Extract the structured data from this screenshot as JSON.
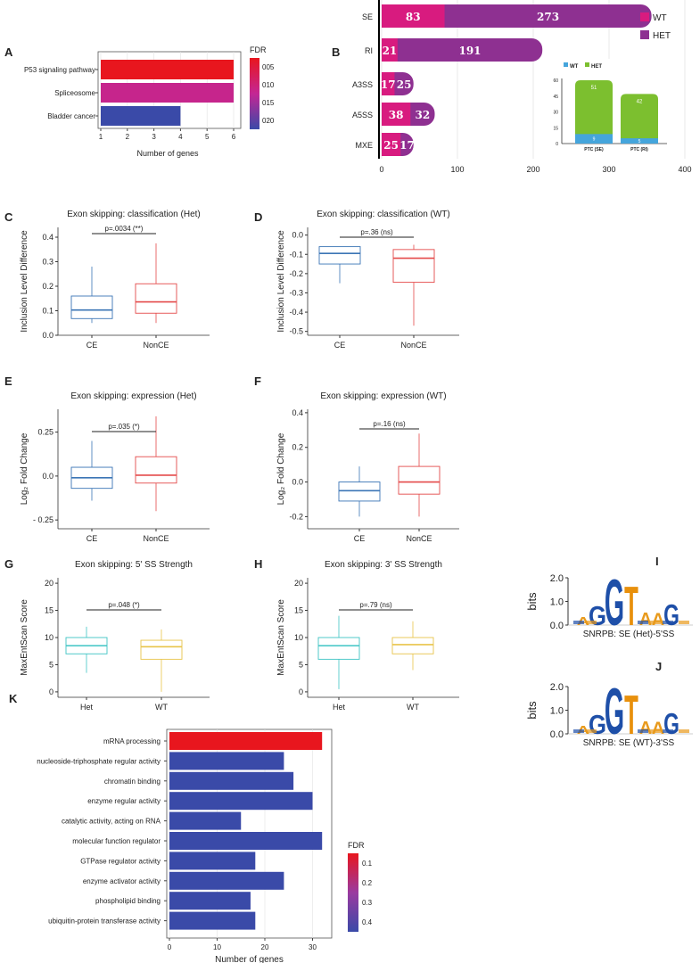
{
  "panel_labels": {
    "a": "A",
    "b": "B",
    "c": "C",
    "d": "D",
    "e": "E",
    "f": "F",
    "g": "G",
    "h": "H",
    "i": "I",
    "j": "J",
    "k": "K"
  },
  "colors": {
    "wt": "#d81b7f",
    "het": "#8e3091",
    "grid": "#e3e3e3",
    "blue_box": "#3b75b5",
    "red_box": "#e44a4a",
    "teal_box": "#3ec4c4",
    "yellow_box": "#e8c44a",
    "ptc_wt": "#45a5dc",
    "ptc_het": "#7cbf2f",
    "logo_g": "#1e4fa8",
    "logo_t": "#e8900c",
    "logo_a": "#e89a1c"
  },
  "chart_data": [
    {
      "id": "A",
      "type": "bar",
      "orientation": "horizontal",
      "categories": [
        "P53 signaling pathway",
        "Spliceosome",
        "Bladder cancer"
      ],
      "values": [
        6,
        6,
        4
      ],
      "fdr": [
        0.005,
        0.012,
        0.02
      ],
      "xlabel": "Number of genes",
      "xlim": [
        1,
        6
      ],
      "xticks": [
        1,
        2,
        3,
        4,
        5,
        6
      ],
      "legend_title": "FDR",
      "legend_ticks": [
        "005",
        "010",
        "015",
        "020"
      ]
    },
    {
      "id": "B",
      "type": "bar",
      "orientation": "horizontal",
      "stacked": true,
      "categories": [
        "SE",
        "RI",
        "A3SS",
        "A5SS",
        "MXE"
      ],
      "series": [
        {
          "name": "WT",
          "values": [
            83,
            21,
            17,
            38,
            25
          ]
        },
        {
          "name": "HET",
          "values": [
            273,
            191,
            25,
            32,
            17
          ]
        }
      ],
      "xlim": [
        0,
        400
      ],
      "xticks": [
        0,
        100,
        200,
        300,
        400
      ],
      "legend": [
        "WT",
        "HET"
      ],
      "inset": {
        "type": "bar",
        "stacked": true,
        "categories": [
          "PTC (SE)",
          "PTC (RI)"
        ],
        "series": [
          {
            "name": "WT",
            "values": [
              9,
              5
            ]
          },
          {
            "name": "HET",
            "values": [
              51,
              42
            ]
          }
        ],
        "ylim": [
          0,
          60
        ],
        "yticks": [
          0,
          15,
          30,
          45,
          60
        ],
        "legend": [
          "WT",
          "HET"
        ]
      }
    },
    {
      "id": "C",
      "type": "box",
      "title": "Exon skipping: classification (Het)",
      "ylabel": "Inclusion Level Difference",
      "categories": [
        "CE",
        "NonCE"
      ],
      "boxes": [
        {
          "min": 0.05,
          "q1": 0.068,
          "median": 0.103,
          "q3": 0.16,
          "max": 0.28
        },
        {
          "min": 0.05,
          "q1": 0.09,
          "median": 0.136,
          "q3": 0.21,
          "max": 0.375
        }
      ],
      "ylim": [
        0.0,
        0.44
      ],
      "yticks": [
        0.0,
        0.1,
        0.2,
        0.3,
        0.4
      ],
      "ytick_labels": [
        "0.0",
        "0.1",
        "0.2",
        "0.3",
        "0.4"
      ],
      "annotation": "p=.0034 (**)"
    },
    {
      "id": "D",
      "type": "box",
      "title": "Exon skipping: classification (WT)",
      "ylabel": "Inclusion Level Difference",
      "categories": [
        "CE",
        "NonCE"
      ],
      "boxes": [
        {
          "min": -0.25,
          "q1": -0.15,
          "median": -0.095,
          "q3": -0.06,
          "max": -0.06
        },
        {
          "min": -0.47,
          "q1": -0.245,
          "median": -0.12,
          "q3": -0.075,
          "max": -0.05
        }
      ],
      "ylim": [
        -0.52,
        0.04
      ],
      "yticks": [
        0.0,
        -0.1,
        -0.2,
        -0.3,
        -0.4,
        -0.5
      ],
      "ytick_labels": [
        "0.0",
        "-0.1",
        "-0.2",
        "-0.3",
        "-0.4",
        "-0.5"
      ],
      "annotation": "p=.36 (ns)"
    },
    {
      "id": "E",
      "type": "box",
      "title": "Exon skipping: expression (Het)",
      "ylabel": "Log₂ Fold Change",
      "categories": [
        "CE",
        "NonCE"
      ],
      "boxes": [
        {
          "min": -0.14,
          "q1": -0.07,
          "median": -0.01,
          "q3": 0.05,
          "max": 0.2
        },
        {
          "min": -0.2,
          "q1": -0.04,
          "median": 0.005,
          "q3": 0.11,
          "max": 0.34
        }
      ],
      "ylim": [
        -0.3,
        0.38
      ],
      "yticks": [
        0.25,
        0.0,
        -0.25
      ],
      "ytick_labels": [
        "0.25",
        "0.0",
        "- 0.25"
      ],
      "annotation": "p=.035 (*)"
    },
    {
      "id": "F",
      "type": "box",
      "title": "Exon skipping: expression (WT)",
      "ylabel": "Log₂ Fold Change",
      "categories": [
        "CE",
        "NonCE"
      ],
      "boxes": [
        {
          "min": -0.2,
          "q1": -0.11,
          "median": -0.05,
          "q3": 0.0,
          "max": 0.09
        },
        {
          "min": -0.2,
          "q1": -0.07,
          "median": 0.0,
          "q3": 0.09,
          "max": 0.28
        }
      ],
      "ylim": [
        -0.27,
        0.42
      ],
      "yticks": [
        0.4,
        0.2,
        0.0,
        -0.2
      ],
      "ytick_labels": [
        "0.4",
        "0.2",
        "0.0",
        "-0.2"
      ],
      "annotation": "p=.16 (ns)"
    },
    {
      "id": "G",
      "type": "box",
      "title": "Exon skipping: 5' SS Strength",
      "ylabel": "MaxEntScan Score",
      "categories": [
        "Het",
        "WT"
      ],
      "boxes": [
        {
          "min": 3.5,
          "q1": 7.0,
          "median": 8.5,
          "q3": 10.0,
          "max": 12.0
        },
        {
          "min": 0.0,
          "q1": 6.0,
          "median": 8.3,
          "q3": 9.5,
          "max": 11.5
        }
      ],
      "ylim": [
        -1,
        21
      ],
      "yticks": [
        0,
        5,
        10,
        15,
        20
      ],
      "ytick_labels": [
        "0",
        "5",
        "10",
        "15",
        "20"
      ],
      "annotation": "p=.048 (*)"
    },
    {
      "id": "H",
      "type": "box",
      "title": "Exon skipping: 3' SS Strength",
      "ylabel": "MaxEntScan Score",
      "categories": [
        "Het",
        "WT"
      ],
      "boxes": [
        {
          "min": 0.5,
          "q1": 6.0,
          "median": 8.5,
          "q3": 10.0,
          "max": 14.0
        },
        {
          "min": 4.0,
          "q1": 7.0,
          "median": 8.7,
          "q3": 10.0,
          "max": 13.0
        }
      ],
      "ylim": [
        -1,
        21
      ],
      "yticks": [
        0,
        5,
        10,
        15,
        20
      ],
      "ytick_labels": [
        "0",
        "5",
        "10",
        "15",
        "20"
      ],
      "annotation": "p=.79 (ns)"
    },
    {
      "id": "I",
      "type": "sequence-logo",
      "ylabel": "bits",
      "yticks": [
        "2.0",
        "1.0",
        "0.0"
      ],
      "sequence": [
        "A",
        "G",
        "G",
        "T",
        "A",
        "A",
        "G"
      ],
      "caption": "SNRPB: SE (Het)-5'SS"
    },
    {
      "id": "J",
      "type": "sequence-logo",
      "ylabel": "bits",
      "yticks": [
        "2.0",
        "1.0",
        "0.0"
      ],
      "sequence": [
        "A",
        "G",
        "G",
        "T",
        "A",
        "A",
        "G"
      ],
      "caption": "SNRPB: SE (WT)-3'SS"
    },
    {
      "id": "K",
      "type": "bar",
      "orientation": "horizontal",
      "categories": [
        "mRNA processing",
        "nucleoside-triphosphate regular activity",
        "chromatin binding",
        "enzyme regular activity",
        "catalytic activity, acting on RNA",
        "molecular function regulator",
        "GTPase regulator activity",
        "enzyme activator activity",
        "phospholipid binding",
        "ubiquitin-protein transferase activity"
      ],
      "values": [
        32,
        24,
        26,
        30,
        15,
        32,
        18,
        24,
        17,
        18
      ],
      "fdr": [
        0.05,
        0.42,
        0.42,
        0.42,
        0.42,
        0.42,
        0.42,
        0.42,
        0.42,
        0.42
      ],
      "xlabel": "Number of genes",
      "xlim": [
        0,
        33
      ],
      "xticks": [
        0,
        10,
        20,
        30
      ],
      "legend_title": "FDR",
      "legend_ticks": [
        "0.1",
        "0.2",
        "0.3",
        "0.4"
      ]
    }
  ]
}
